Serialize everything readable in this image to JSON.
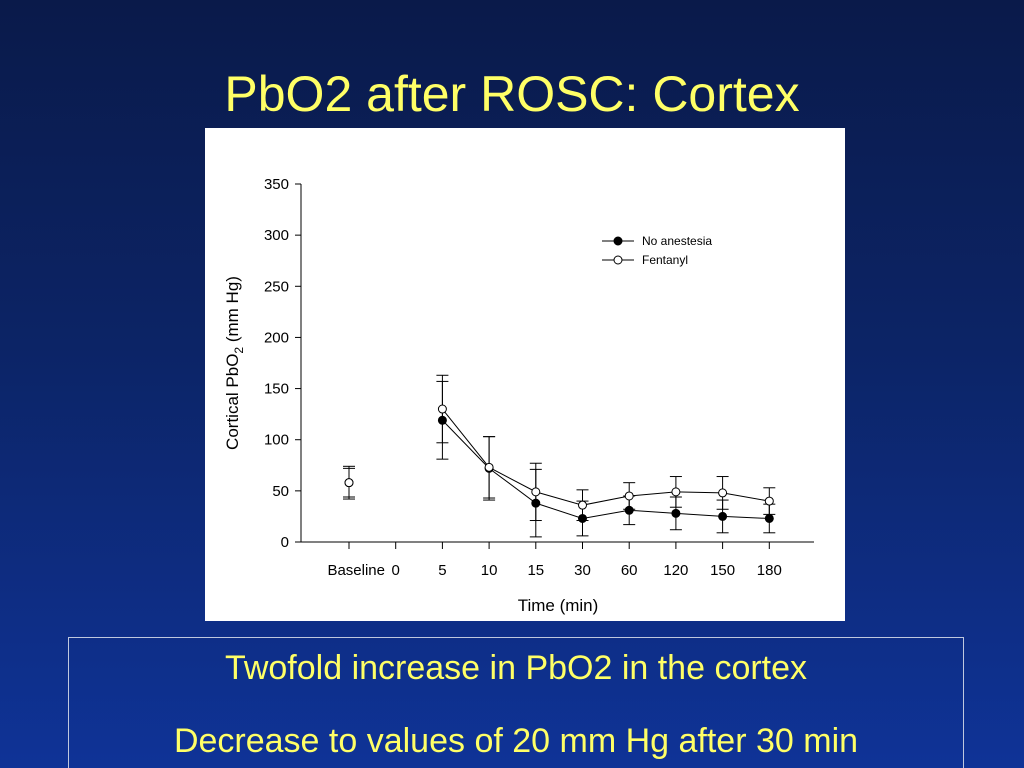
{
  "slide": {
    "title": "PbO2 after ROSC: Cortex",
    "summary_lines": [
      "Twofold increase in PbO2 in the cortex",
      "Decrease to values of 20 mm Hg after 30 min"
    ]
  },
  "chart_data": {
    "type": "line",
    "title": "",
    "xlabel": "Time (min)",
    "ylabel": "Cortical PbO2 (mm Hg)",
    "ylabel_parts": {
      "before": "Cortical PbO",
      "sub": "2",
      "after": " (mm Hg)"
    },
    "categories": [
      "Baseline",
      "0",
      "5",
      "10",
      "15",
      "30",
      "60",
      "120",
      "150",
      "180"
    ],
    "ylim": [
      0,
      350
    ],
    "yticks": [
      0,
      50,
      100,
      150,
      200,
      250,
      300,
      350
    ],
    "grid": false,
    "legend": "top-right",
    "series": [
      {
        "name": "No anestesia",
        "marker": "filled-circle",
        "values": [
          58,
          null,
          119,
          72,
          38,
          23,
          31,
          28,
          25,
          23
        ],
        "error": [
          14,
          null,
          38,
          31,
          33,
          17,
          14,
          16,
          16,
          14
        ]
      },
      {
        "name": "Fentanyl",
        "marker": "open-circle",
        "values": [
          58,
          null,
          130,
          73,
          49,
          36,
          45,
          49,
          48,
          40
        ],
        "error": [
          16,
          null,
          33,
          30,
          28,
          15,
          13,
          15,
          16,
          13
        ]
      }
    ],
    "colors": {
      "line": "#000000",
      "open_marker_fill": "#ffffff"
    }
  }
}
